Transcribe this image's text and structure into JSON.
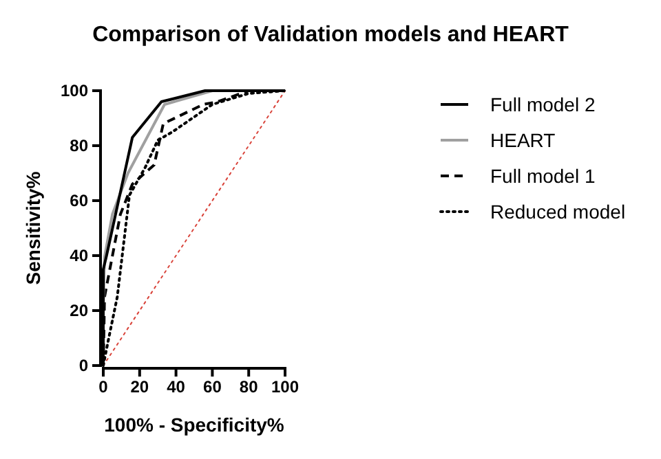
{
  "chart_data": {
    "type": "line",
    "title": "Comparison of Validation models and HEART",
    "xlabel": "100% - Specificity%",
    "ylabel": "Sensitivity%",
    "xlim": [
      0,
      100
    ],
    "ylim": [
      0,
      100
    ],
    "xticks": [
      0,
      20,
      40,
      60,
      80,
      100
    ],
    "yticks": [
      0,
      20,
      40,
      60,
      80,
      100
    ],
    "grid": false,
    "legend": "right",
    "marker": "none",
    "series": [
      {
        "name": "Full model 2",
        "color": "#000000",
        "line_style": "solid",
        "x": [
          0,
          0,
          1.8,
          16,
          32,
          56,
          100
        ],
        "values": [
          0,
          35,
          40,
          83,
          96,
          100,
          100
        ]
      },
      {
        "name": "HEART",
        "color": "#a0a0a0",
        "line_style": "solid",
        "x": [
          0,
          0,
          0.7,
          5,
          13.6,
          33.7,
          60,
          100
        ],
        "values": [
          0,
          20,
          39.5,
          55,
          70,
          95,
          100,
          100
        ]
      },
      {
        "name": "Full model 1",
        "color": "#000000",
        "line_style": "dashed",
        "x": [
          0,
          0.7,
          9.4,
          16,
          28,
          33,
          55,
          63,
          80,
          100
        ],
        "values": [
          0,
          25,
          55,
          66,
          73,
          88,
          95,
          96,
          100,
          100
        ]
      },
      {
        "name": "Reduced model",
        "color": "#000000",
        "line_style": "dotted",
        "x": [
          0,
          2.7,
          7.7,
          14.4,
          23,
          30,
          38,
          60,
          80,
          100
        ],
        "values": [
          0,
          9,
          25,
          62,
          72,
          82,
          85,
          95,
          99,
          100
        ]
      },
      {
        "color": "#d9433a",
        "line_style": "dotted",
        "x": [
          0,
          100
        ],
        "values": [
          0,
          100
        ]
      }
    ]
  }
}
